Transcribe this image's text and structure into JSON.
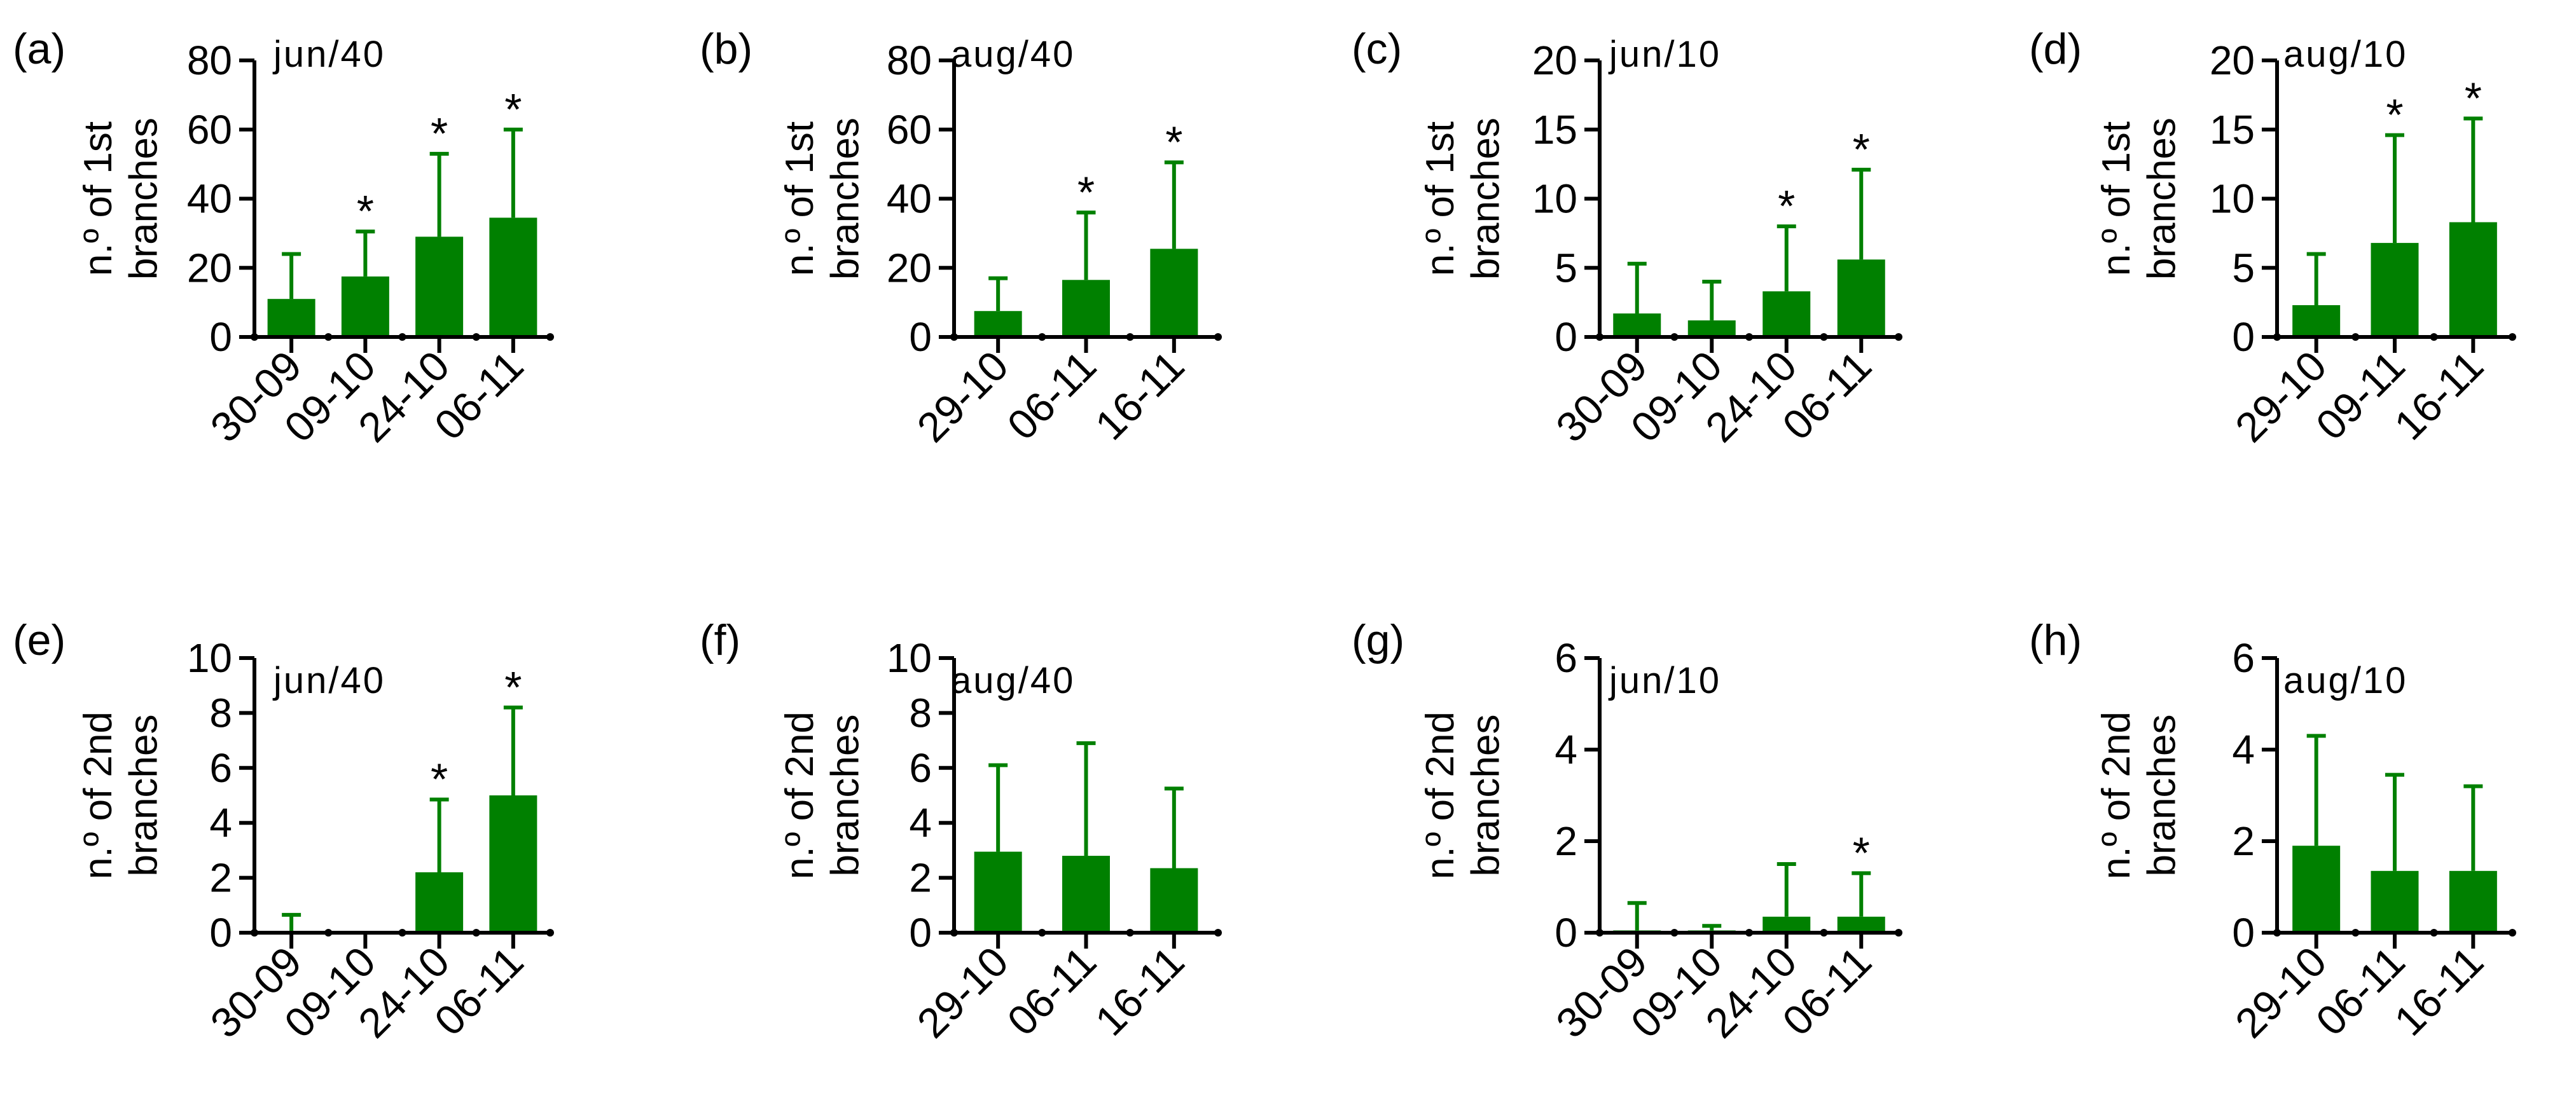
{
  "chart_data": [
    {
      "panel": "(a)",
      "label": "jun/40",
      "type": "bar",
      "ylabel": [
        "n.º of 1st",
        "branches"
      ],
      "ylim": [
        0,
        80
      ],
      "yticks": [
        0,
        20,
        40,
        60,
        80
      ],
      "categories": [
        "30-09",
        "09-10",
        "24-10",
        "06-11"
      ],
      "values": [
        11,
        17.5,
        29,
        34.5
      ],
      "errors": [
        24,
        30.5,
        53,
        60
      ],
      "significant": [
        false,
        true,
        true,
        true
      ]
    },
    {
      "panel": "(b)",
      "label": "aug/40",
      "type": "bar",
      "ylabel": [
        "n.º of 1st",
        "branches"
      ],
      "ylim": [
        0,
        80
      ],
      "yticks": [
        0,
        20,
        40,
        60,
        80
      ],
      "categories": [
        "29-10",
        "06-11",
        "16-11"
      ],
      "values": [
        7.5,
        16.5,
        25.5
      ],
      "errors": [
        17,
        36,
        50.5
      ],
      "significant": [
        false,
        true,
        true
      ]
    },
    {
      "panel": "(c)",
      "label": "jun/10",
      "type": "bar",
      "ylabel": [
        "n.º of 1st",
        "branches"
      ],
      "ylim": [
        0,
        20
      ],
      "yticks": [
        0,
        5,
        10,
        15,
        20
      ],
      "categories": [
        "30-09",
        "09-10",
        "24-10",
        "06-11"
      ],
      "values": [
        1.7,
        1.2,
        3.3,
        5.6
      ],
      "errors": [
        5.3,
        4,
        8,
        12.1
      ],
      "significant": [
        false,
        false,
        true,
        true
      ]
    },
    {
      "panel": "(d)",
      "label": "aug/10",
      "type": "bar",
      "ylabel": [
        "n.º of 1st",
        "branches"
      ],
      "ylim": [
        0,
        20
      ],
      "yticks": [
        0,
        5,
        10,
        15,
        20
      ],
      "categories": [
        "29-10",
        "09-11",
        "16-11"
      ],
      "values": [
        2.3,
        6.8,
        8.3
      ],
      "errors": [
        6,
        14.6,
        15.8
      ],
      "significant": [
        false,
        true,
        true
      ]
    },
    {
      "panel": "(e)",
      "label": "jun/40",
      "type": "bar",
      "ylabel": [
        "n.º of 2nd",
        "branches"
      ],
      "ylim": [
        0,
        10
      ],
      "yticks": [
        0,
        2,
        4,
        6,
        8,
        10
      ],
      "categories": [
        "30-09",
        "09-10",
        "24-10",
        "06-11"
      ],
      "values": [
        0.05,
        0,
        2.2,
        5
      ],
      "errors": [
        0.65,
        0,
        4.85,
        8.2
      ],
      "significant": [
        false,
        false,
        true,
        true
      ]
    },
    {
      "panel": "(f)",
      "label": "aug/40",
      "type": "bar",
      "ylabel": [
        "n.º of 2nd",
        "branches"
      ],
      "ylim": [
        0,
        10
      ],
      "yticks": [
        0,
        2,
        4,
        6,
        8,
        10
      ],
      "categories": [
        "29-10",
        "06-11",
        "16-11"
      ],
      "values": [
        2.95,
        2.8,
        2.35
      ],
      "errors": [
        6.1,
        6.9,
        5.25
      ],
      "significant": [
        false,
        false,
        false
      ]
    },
    {
      "panel": "(g)",
      "label": "jun/10",
      "type": "bar",
      "ylabel": [
        "n.º of 2nd",
        "branches"
      ],
      "ylim": [
        0,
        6
      ],
      "yticks": [
        0,
        2,
        4,
        6
      ],
      "categories": [
        "30-09",
        "09-10",
        "24-10",
        "06-11"
      ],
      "values": [
        0.05,
        0.05,
        0.35,
        0.35
      ],
      "errors": [
        0.65,
        0.15,
        1.5,
        1.3
      ],
      "significant": [
        false,
        false,
        false,
        true
      ]
    },
    {
      "panel": "(h)",
      "label": "aug/10",
      "type": "bar",
      "ylabel": [
        "n.º of 2nd",
        "branches"
      ],
      "ylim": [
        0,
        6
      ],
      "yticks": [
        0,
        2,
        4,
        6
      ],
      "categories": [
        "29-10",
        "06-11",
        "16-11"
      ],
      "values": [
        1.9,
        1.35,
        1.35
      ],
      "errors": [
        4.3,
        3.45,
        3.2
      ],
      "significant": [
        false,
        false,
        false
      ]
    }
  ],
  "significance_marker": "*"
}
